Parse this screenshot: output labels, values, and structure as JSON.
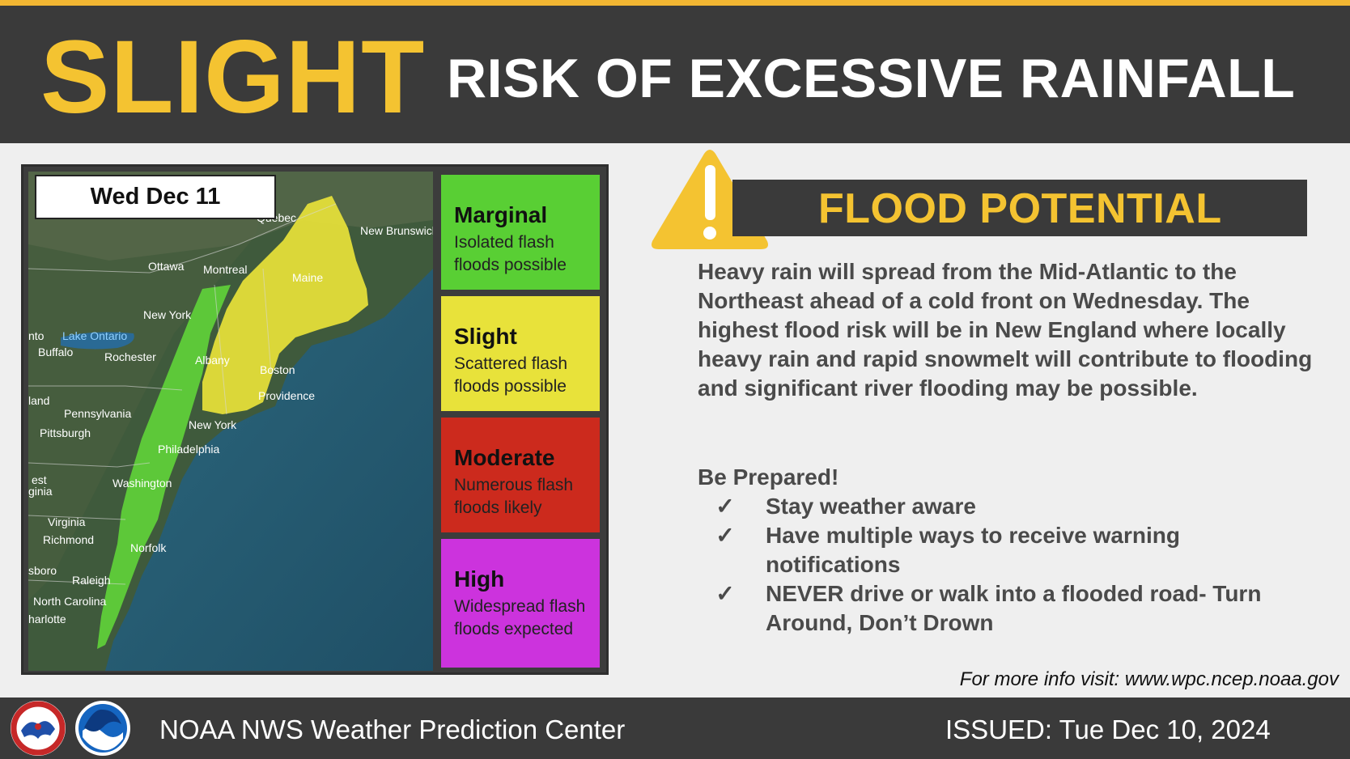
{
  "header": {
    "risk_level": "SLIGHT",
    "risk_title": "RISK OF EXCESSIVE RAINFALL"
  },
  "map": {
    "date": "Wed Dec 11",
    "places": [
      "Quebec",
      "New Brunswick",
      "Ottawa",
      "Montreal",
      "Maine",
      "New York",
      "Lake Ontario",
      "Buffalo",
      "Rochester",
      "Albany",
      "Boston",
      "Providence",
      "Pennsylvania",
      "Pittsburgh",
      "New York",
      "Philadelphia",
      "Washington",
      "Virginia",
      "Richmond",
      "Norfolk",
      "Raleigh",
      "North Carolina",
      "nto",
      "land",
      "est",
      "ginia",
      "sboro",
      "harlotte"
    ]
  },
  "legend": [
    {
      "name": "Marginal",
      "desc_line1": "Isolated flash",
      "desc_line2": "floods possible",
      "color": "#59cf34"
    },
    {
      "name": "Slight",
      "desc_line1": "Scattered flash",
      "desc_line2": "floods possible",
      "color": "#e8e23a"
    },
    {
      "name": "Moderate",
      "desc_line1": "Numerous flash",
      "desc_line2": "floods likely",
      "color": "#cc2a1d"
    },
    {
      "name": "High",
      "desc_line1": "Widespread flash",
      "desc_line2": "floods expected",
      "color": "#cc33dd"
    }
  ],
  "flood": {
    "title": "FLOOD POTENTIAL",
    "description": "Heavy rain will spread from the Mid-Atlantic to the Northeast ahead of a cold front on Wednesday. The highest flood risk will be in New England where locally heavy rain and rapid snowmelt will contribute to flooding and significant river flooding may be possible."
  },
  "prepare": {
    "title": "Be Prepared!",
    "check": "✓",
    "items": [
      "Stay weather aware",
      "Have multiple ways to receive warning notifications",
      "NEVER drive or walk into a flooded road- Turn Around, Don’t Drown"
    ]
  },
  "more_info": "For more info visit: www.wpc.ncep.noaa.gov",
  "footer": {
    "org": "NOAA NWS Weather Prediction Center",
    "issued": "ISSUED: Tue Dec 10, 2024",
    "logo1": "nws-logo",
    "logo2": "noaa-logo"
  },
  "colors": {
    "accent": "#f4c331",
    "banner": "#3a3a3a"
  }
}
